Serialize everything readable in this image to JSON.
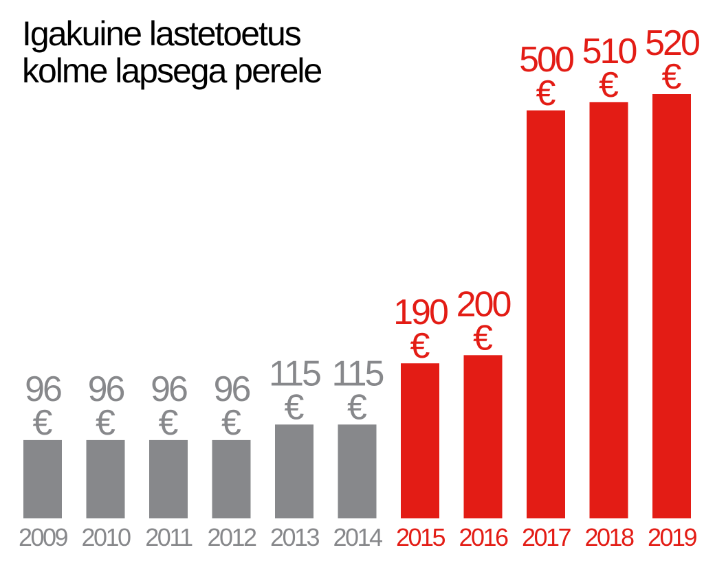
{
  "chart_data": {
    "type": "bar",
    "title_lines": [
      "Igakuine lastetoetus",
      "kolme lapsega perele"
    ],
    "categories": [
      "2009",
      "2010",
      "2011",
      "2012",
      "2013",
      "2014",
      "2015",
      "2016",
      "2017",
      "2018",
      "2019"
    ],
    "values": [
      96,
      96,
      96,
      96,
      115,
      115,
      190,
      200,
      500,
      510,
      520
    ],
    "value_labels": [
      "96",
      "96",
      "96",
      "96",
      "115",
      "115",
      "190",
      "200",
      "500",
      "510",
      "520"
    ],
    "unit": "€",
    "xlabel": "",
    "ylabel": "",
    "ylim": [
      0,
      520
    ],
    "grid": false,
    "highlight_from_index": 6,
    "colors": {
      "base": "#87888b",
      "highlight": "#e31c15",
      "title": "#000000"
    }
  }
}
